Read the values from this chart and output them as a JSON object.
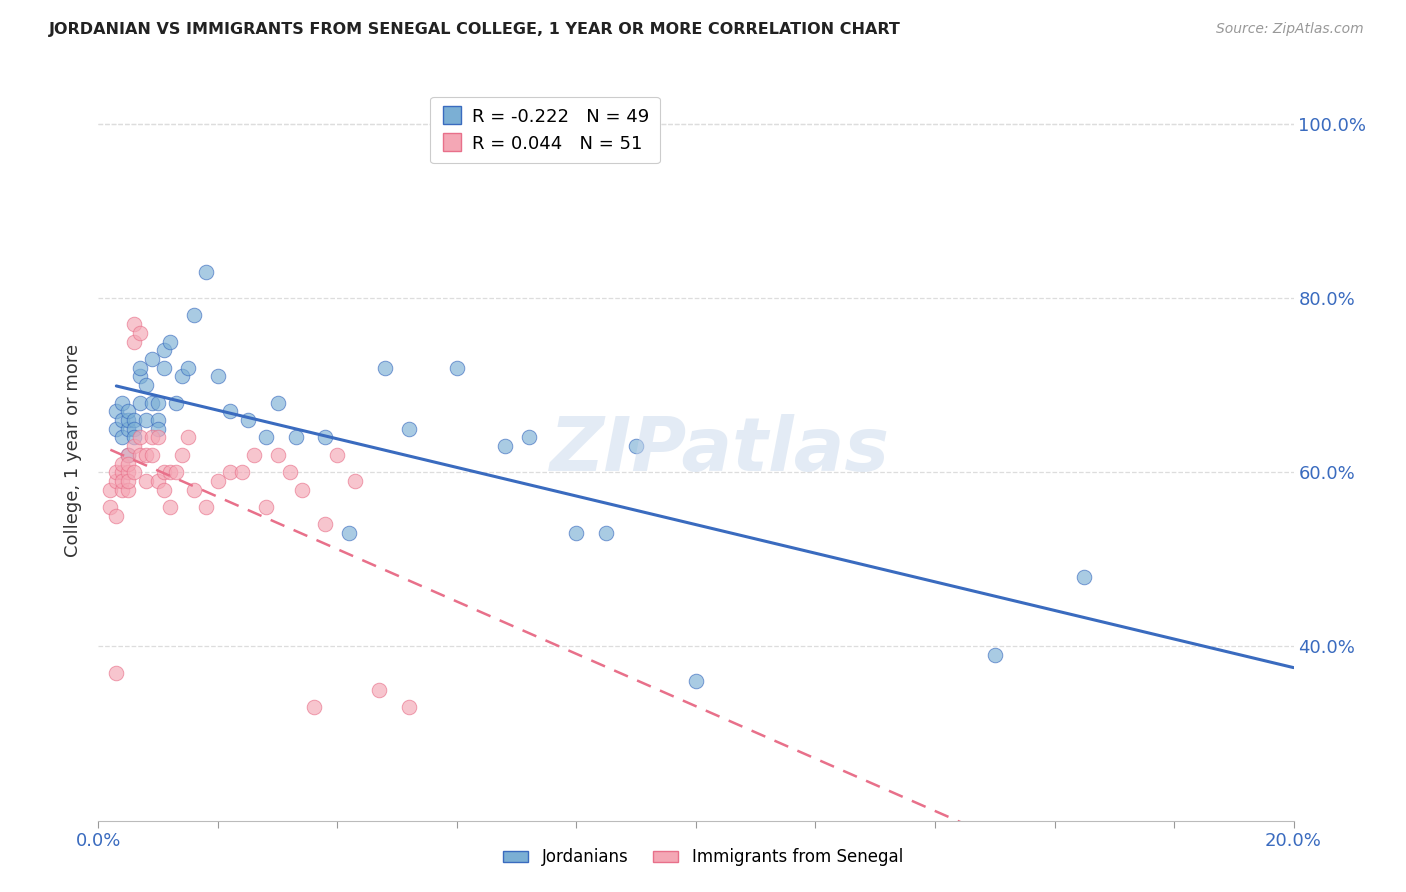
{
  "title": "JORDANIAN VS IMMIGRANTS FROM SENEGAL COLLEGE, 1 YEAR OR MORE CORRELATION CHART",
  "source": "Source: ZipAtlas.com",
  "ylabel": "College, 1 year or more",
  "xlim": [
    0.0,
    0.2
  ],
  "ylim": [
    0.2,
    1.05
  ],
  "ytick_vals": [
    0.4,
    0.6,
    0.8,
    1.0
  ],
  "ytick_labels": [
    "40.0%",
    "60.0%",
    "80.0%",
    "100.0%"
  ],
  "xtick_vals": [
    0.0,
    0.02,
    0.04,
    0.06,
    0.08,
    0.1,
    0.12,
    0.14,
    0.16,
    0.18,
    0.2
  ],
  "xtick_labels": [
    "0.0%",
    "",
    "",
    "",
    "",
    "",
    "",
    "",
    "",
    "",
    "20.0%"
  ],
  "blue_scatter": "#7BAFD4",
  "pink_scatter": "#F4A7B5",
  "line_blue": "#3A6BBF",
  "line_pink": "#E8708A",
  "legend_R_blue": "-0.222",
  "legend_N_blue": "49",
  "legend_R_pink": "0.044",
  "legend_N_pink": "51",
  "jordanians_x": [
    0.003,
    0.003,
    0.004,
    0.004,
    0.004,
    0.005,
    0.005,
    0.005,
    0.005,
    0.006,
    0.006,
    0.006,
    0.007,
    0.007,
    0.007,
    0.008,
    0.008,
    0.009,
    0.009,
    0.01,
    0.01,
    0.01,
    0.011,
    0.011,
    0.012,
    0.013,
    0.014,
    0.015,
    0.016,
    0.018,
    0.02,
    0.022,
    0.025,
    0.028,
    0.03,
    0.033,
    0.038,
    0.042,
    0.048,
    0.052,
    0.06,
    0.068,
    0.072,
    0.08,
    0.085,
    0.09,
    0.1,
    0.15,
    0.165
  ],
  "jordanians_y": [
    0.65,
    0.67,
    0.66,
    0.64,
    0.68,
    0.65,
    0.66,
    0.67,
    0.62,
    0.66,
    0.65,
    0.64,
    0.71,
    0.68,
    0.72,
    0.7,
    0.66,
    0.68,
    0.73,
    0.66,
    0.68,
    0.65,
    0.72,
    0.74,
    0.75,
    0.68,
    0.71,
    0.72,
    0.78,
    0.83,
    0.71,
    0.67,
    0.66,
    0.64,
    0.68,
    0.64,
    0.64,
    0.53,
    0.72,
    0.65,
    0.72,
    0.63,
    0.64,
    0.53,
    0.53,
    0.63,
    0.36,
    0.39,
    0.48
  ],
  "senegal_x": [
    0.002,
    0.002,
    0.003,
    0.003,
    0.003,
    0.003,
    0.004,
    0.004,
    0.004,
    0.004,
    0.005,
    0.005,
    0.005,
    0.005,
    0.005,
    0.006,
    0.006,
    0.006,
    0.006,
    0.007,
    0.007,
    0.007,
    0.008,
    0.008,
    0.009,
    0.009,
    0.01,
    0.01,
    0.011,
    0.011,
    0.012,
    0.012,
    0.013,
    0.014,
    0.015,
    0.016,
    0.018,
    0.02,
    0.022,
    0.024,
    0.026,
    0.028,
    0.03,
    0.032,
    0.034,
    0.036,
    0.038,
    0.04,
    0.043,
    0.047,
    0.052
  ],
  "senegal_y": [
    0.56,
    0.58,
    0.55,
    0.59,
    0.6,
    0.37,
    0.58,
    0.6,
    0.61,
    0.59,
    0.62,
    0.6,
    0.58,
    0.61,
    0.59,
    0.75,
    0.77,
    0.63,
    0.6,
    0.76,
    0.64,
    0.62,
    0.62,
    0.59,
    0.64,
    0.62,
    0.59,
    0.64,
    0.58,
    0.6,
    0.56,
    0.6,
    0.6,
    0.62,
    0.64,
    0.58,
    0.56,
    0.59,
    0.6,
    0.6,
    0.62,
    0.56,
    0.62,
    0.6,
    0.58,
    0.33,
    0.54,
    0.62,
    0.59,
    0.35,
    0.33
  ],
  "watermark": "ZIPatlas",
  "grid_color": "#DDDDDD",
  "bg_color": "#FFFFFF"
}
